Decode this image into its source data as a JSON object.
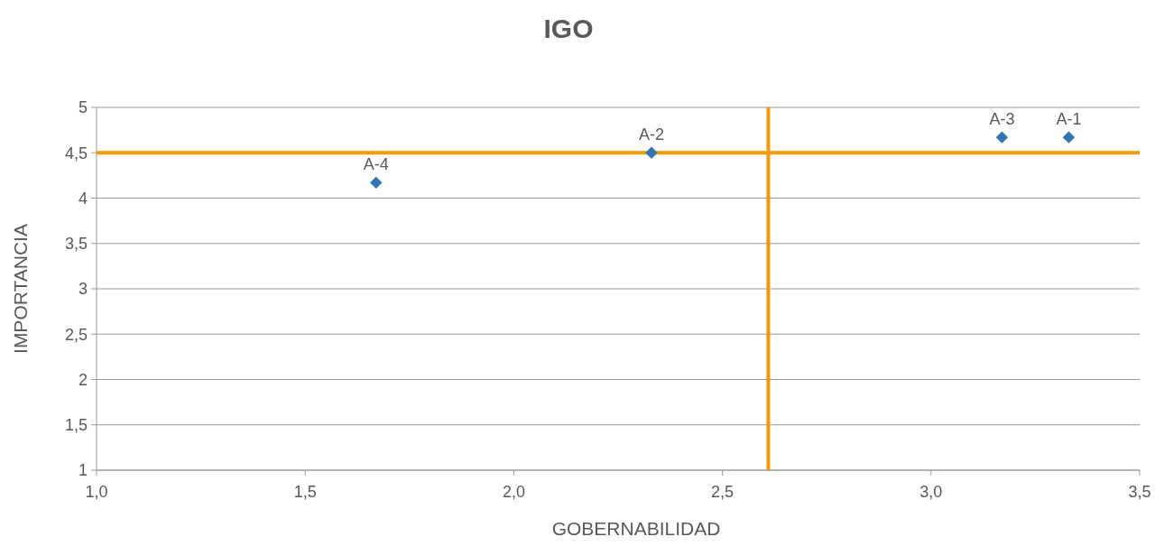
{
  "chart_data": {
    "type": "scatter",
    "title": "IGO",
    "xlabel": "GOBERNABILIDAD",
    "ylabel": "IMPORTANCIA",
    "x": [
      3.33,
      2.33,
      3.17,
      1.67
    ],
    "series": [
      {
        "color": "#2e75b6",
        "values": [
          4.67,
          4.5,
          4.67,
          4.17
        ]
      }
    ],
    "marker": "diamond",
    "grid": "y",
    "xlim": [
      1,
      3.5
    ],
    "xticks": [
      {
        "value": 1,
        "label": "1,0"
      },
      {
        "value": 1.5,
        "label": "1,5"
      },
      {
        "value": 2,
        "label": "2,0"
      },
      {
        "value": 2.5,
        "label": "2,5"
      },
      {
        "value": 3,
        "label": "3,0"
      },
      {
        "value": 3.5,
        "label": "3,5"
      }
    ],
    "ylim": [
      1,
      5
    ],
    "yticks": [
      1,
      {
        "value": 1.5,
        "label": "1,5"
      },
      2,
      {
        "value": 2.5,
        "label": "2,5"
      },
      3,
      {
        "value": 3.5,
        "label": "3,5"
      },
      4,
      {
        "value": 4.5,
        "label": "4,5"
      },
      5
    ],
    "ref_lines": [
      {
        "axis": "y",
        "value": 4.5,
        "color": "#f39a00"
      },
      {
        "axis": "x",
        "value": 2.61,
        "color": "#f39a00"
      }
    ],
    "annotations": [
      {
        "text": "A-1",
        "x": 3.33,
        "y": 4.67
      },
      {
        "text": "A-2",
        "x": 2.33,
        "y": 4.5
      },
      {
        "text": "A-3",
        "x": 3.17,
        "y": 4.67
      },
      {
        "text": "A-4",
        "x": 1.67,
        "y": 4.17
      }
    ]
  }
}
